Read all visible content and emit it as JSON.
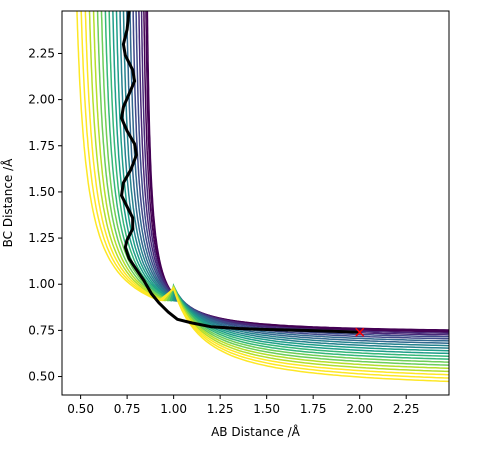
{
  "chart_data": {
    "type": "contour",
    "title": "",
    "xlabel": "AB Distance /Å",
    "ylabel": "BC Distance /Å",
    "xlim": [
      0.4,
      2.48
    ],
    "ylim": [
      0.4,
      2.48
    ],
    "xticks": [
      "0.50",
      "0.75",
      "1.00",
      "1.25",
      "1.50",
      "1.75",
      "2.00",
      "2.25"
    ],
    "yticks": [
      "0.50",
      "0.75",
      "1.00",
      "1.25",
      "1.50",
      "1.75",
      "2.00",
      "2.25"
    ],
    "grid": false,
    "colormap": "viridis",
    "colormap_colors": [
      "#440154",
      "#482878",
      "#3e4989",
      "#31688e",
      "#26828e",
      "#1f9e89",
      "#35b779",
      "#6ece58",
      "#b5de2b",
      "#fde725"
    ],
    "trajectory": {
      "color": "#000000",
      "points": [
        [
          0.76,
          2.48
        ],
        [
          0.75,
          2.38
        ],
        [
          0.73,
          2.3
        ],
        [
          0.74,
          2.24
        ],
        [
          0.78,
          2.16
        ],
        [
          0.79,
          2.1
        ],
        [
          0.76,
          2.03
        ],
        [
          0.73,
          1.96
        ],
        [
          0.72,
          1.9
        ],
        [
          0.75,
          1.83
        ],
        [
          0.79,
          1.76
        ],
        [
          0.8,
          1.7
        ],
        [
          0.77,
          1.62
        ],
        [
          0.73,
          1.55
        ],
        [
          0.72,
          1.48
        ],
        [
          0.75,
          1.42
        ],
        [
          0.78,
          1.36
        ],
        [
          0.78,
          1.3
        ],
        [
          0.75,
          1.24
        ],
        [
          0.74,
          1.2
        ],
        [
          0.76,
          1.14
        ],
        [
          0.8,
          1.08
        ],
        [
          0.84,
          1.02
        ],
        [
          0.88,
          0.95
        ],
        [
          0.92,
          0.9
        ],
        [
          0.97,
          0.85
        ],
        [
          1.02,
          0.81
        ],
        [
          1.1,
          0.79
        ],
        [
          1.2,
          0.77
        ],
        [
          1.35,
          0.76
        ],
        [
          1.5,
          0.755
        ],
        [
          1.7,
          0.75
        ],
        [
          1.85,
          0.745
        ],
        [
          2.0,
          0.74
        ]
      ]
    },
    "start_marker": {
      "x": 2.0,
      "y": 0.74,
      "symbol": "x",
      "color": "#ff0000"
    }
  }
}
